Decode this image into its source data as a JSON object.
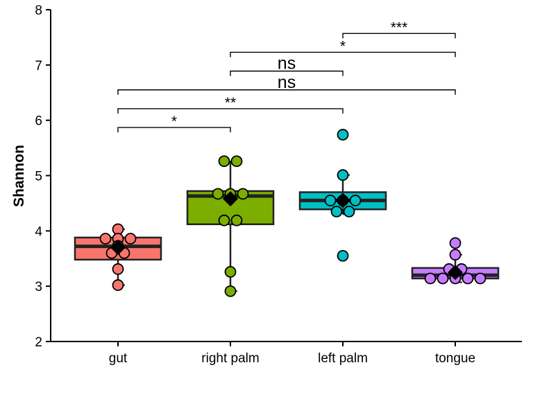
{
  "chart_data": {
    "type": "box",
    "ylabel": "Shannon",
    "xlabel": "",
    "ylim": [
      2,
      8
    ],
    "yticks": [
      2,
      3,
      4,
      5,
      6,
      7,
      8
    ],
    "categories": [
      "gut",
      "right palm",
      "left palm",
      "tongue"
    ],
    "colors": {
      "gut": "#F8766D",
      "right palm": "#7CAE00",
      "left palm": "#00BFC4",
      "tongue": "#C77CFF"
    },
    "boxes": [
      {
        "group": "gut",
        "min": 3.02,
        "q1": 3.48,
        "median": 3.72,
        "q3": 3.88,
        "max": 4.03,
        "mean": 3.7
      },
      {
        "group": "right palm",
        "min": 2.91,
        "q1": 4.12,
        "median": 4.63,
        "q3": 4.72,
        "max": 5.26,
        "mean": 4.58
      },
      {
        "group": "left palm",
        "min": 4.3,
        "q1": 4.39,
        "median": 4.55,
        "q3": 4.7,
        "max": 5.01,
        "mean": 4.55
      },
      {
        "group": "tongue",
        "min": 3.07,
        "q1": 3.14,
        "median": 3.2,
        "q3": 3.33,
        "max": 3.57,
        "mean": 3.25
      }
    ],
    "points": [
      {
        "group": "gut",
        "values": [
          4.03,
          3.86,
          3.86,
          3.86,
          3.73,
          3.6,
          3.6,
          3.31,
          3.02
        ]
      },
      {
        "group": "right palm",
        "values": [
          5.26,
          5.26,
          4.67,
          4.67,
          4.67,
          4.19,
          4.19,
          3.26,
          2.91
        ]
      },
      {
        "group": "left palm",
        "values": [
          5.74,
          5.01,
          4.55,
          4.55,
          4.55,
          4.35,
          4.35,
          3.55
        ]
      },
      {
        "group": "tongue",
        "values": [
          3.78,
          3.57,
          3.31,
          3.31,
          3.14,
          3.14,
          3.14,
          3.14,
          3.14
        ]
      }
    ],
    "comparisons": [
      {
        "from": "gut",
        "to": "right palm",
        "y": 5.87,
        "label": "*"
      },
      {
        "from": "gut",
        "to": "left palm",
        "y": 6.21,
        "label": "**"
      },
      {
        "from": "gut",
        "to": "tongue",
        "y": 6.55,
        "label": "ns"
      },
      {
        "from": "right palm",
        "to": "left palm",
        "y": 6.89,
        "label": "ns"
      },
      {
        "from": "right palm",
        "to": "tongue",
        "y": 7.23,
        "label": "*"
      },
      {
        "from": "left palm",
        "to": "tongue",
        "y": 7.57,
        "label": "***"
      }
    ],
    "grid": false,
    "legend": "none"
  }
}
